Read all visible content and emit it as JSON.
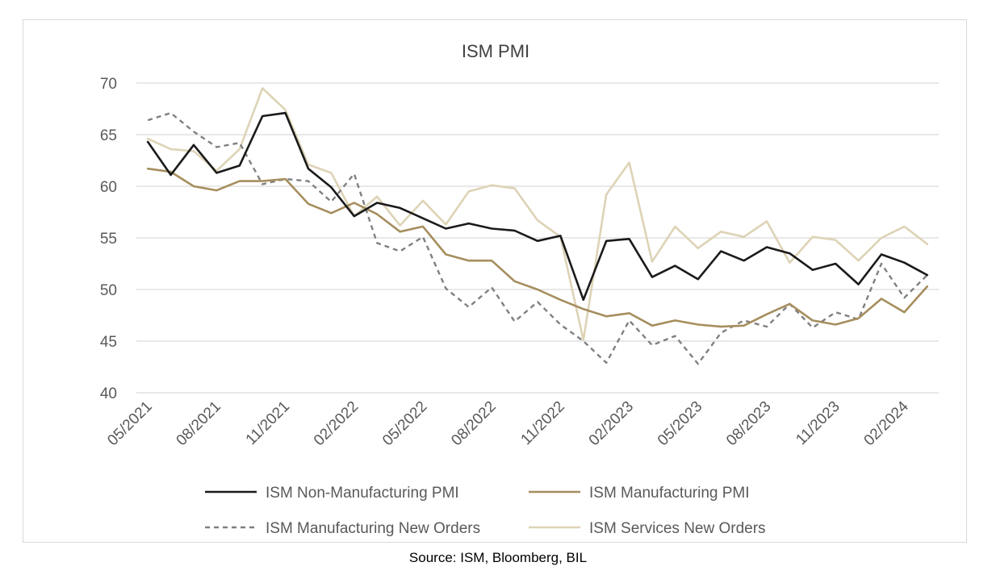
{
  "chart_data": {
    "type": "line",
    "title": "ISM PMI",
    "xlabel": "",
    "ylabel": "",
    "ylim": [
      40,
      70
    ],
    "yticks": [
      "40",
      "45",
      "50",
      "55",
      "60",
      "65",
      "70"
    ],
    "xtick_labels": [
      "05/2021",
      "08/2021",
      "11/2021",
      "02/2022",
      "05/2022",
      "08/2022",
      "11/2022",
      "02/2023",
      "05/2023",
      "08/2023",
      "11/2023",
      "02/2024"
    ],
    "x": [
      "05/2021",
      "06/2021",
      "07/2021",
      "08/2021",
      "09/2021",
      "10/2021",
      "11/2021",
      "12/2021",
      "01/2022",
      "02/2022",
      "03/2022",
      "04/2022",
      "05/2022",
      "06/2022",
      "07/2022",
      "08/2022",
      "09/2022",
      "10/2022",
      "11/2022",
      "12/2022",
      "01/2023",
      "02/2023",
      "03/2023",
      "04/2023",
      "05/2023",
      "06/2023",
      "07/2023",
      "08/2023",
      "09/2023",
      "10/2023",
      "11/2023",
      "12/2023",
      "01/2024",
      "02/2024",
      "03/2024"
    ],
    "grid": true,
    "legend_position": "bottom",
    "series": [
      {
        "name": "ISM Non-Manufacturing PMI",
        "color": "#1a1a1a",
        "dash": "solid",
        "values": [
          64.3,
          61.1,
          64.0,
          61.3,
          62.0,
          66.8,
          67.1,
          61.7,
          59.9,
          57.1,
          58.4,
          57.9,
          56.9,
          55.9,
          56.4,
          55.9,
          55.7,
          54.7,
          55.2,
          49.0,
          54.7,
          54.9,
          51.2,
          52.3,
          51.0,
          53.7,
          52.8,
          54.1,
          53.5,
          51.9,
          52.5,
          50.5,
          53.4,
          52.6,
          51.4
        ]
      },
      {
        "name": "ISM Manufacturing PMI",
        "color": "#a68e5e",
        "dash": "solid",
        "values": [
          61.7,
          61.4,
          60.0,
          59.6,
          60.5,
          60.5,
          60.7,
          58.3,
          57.4,
          58.4,
          57.3,
          55.6,
          56.1,
          53.4,
          52.8,
          52.8,
          50.8,
          50.0,
          49.0,
          48.1,
          47.4,
          47.7,
          46.5,
          47.0,
          46.6,
          46.4,
          46.5,
          47.6,
          48.6,
          47.0,
          46.6,
          47.2,
          49.1,
          47.8,
          50.3
        ]
      },
      {
        "name": "ISM Manufacturing New Orders",
        "color": "#808080",
        "dash": "dashed",
        "values": [
          66.4,
          67.1,
          65.3,
          63.8,
          64.2,
          60.2,
          60.7,
          60.5,
          58.5,
          61.2,
          54.5,
          53.7,
          55.1,
          50.1,
          48.3,
          50.2,
          46.9,
          48.8,
          46.6,
          45.0,
          42.9,
          47.0,
          44.6,
          45.5,
          42.8,
          45.8,
          47.0,
          46.4,
          48.6,
          46.3,
          47.8,
          47.1,
          52.5,
          49.2,
          51.4
        ]
      },
      {
        "name": "ISM Services New Orders",
        "color": "#ddd3b6",
        "dash": "solid",
        "values": [
          64.6,
          63.6,
          63.4,
          61.5,
          63.6,
          69.5,
          67.4,
          62.1,
          61.3,
          57.1,
          59.0,
          56.2,
          58.6,
          56.3,
          59.5,
          60.1,
          59.8,
          56.7,
          55.1,
          45.1,
          59.2,
          62.3,
          52.7,
          56.1,
          54.0,
          55.6,
          55.1,
          56.6,
          52.6,
          55.1,
          54.8,
          52.8,
          55.0,
          56.1,
          54.4
        ]
      }
    ]
  },
  "source": "Source: ISM, Bloomberg, BIL"
}
